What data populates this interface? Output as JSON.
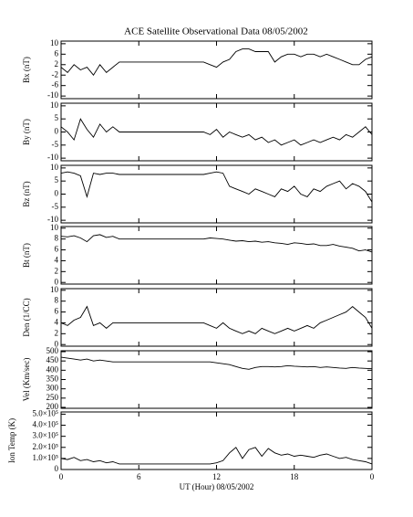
{
  "chart_data": [
    {
      "type": "line",
      "title": "ACE Satellite Observational Data   08/05/2002",
      "ylabel": "Bx (nT)",
      "color": "#000000",
      "x": [
        0,
        0.5,
        1,
        1.5,
        2,
        2.5,
        3,
        3.5,
        4,
        4.5,
        5,
        5.5,
        6,
        6.5,
        7,
        7.5,
        8,
        8.5,
        9,
        9.5,
        10,
        10.5,
        11,
        11.5,
        12,
        12.5,
        13,
        13.5,
        14,
        14.5,
        15,
        15.5,
        16,
        16.5,
        17,
        17.5,
        18,
        18.5,
        19,
        19.5,
        20,
        20.5,
        21,
        21.5,
        22,
        22.5,
        23,
        23.5,
        24
      ],
      "values": [
        1,
        -1,
        2,
        0,
        1,
        -2,
        2,
        -1,
        1,
        3,
        3,
        3,
        3,
        3,
        3,
        3,
        3,
        3,
        3,
        3,
        3,
        3,
        3,
        2,
        1,
        3,
        4,
        7,
        8,
        8,
        7,
        7,
        7,
        3,
        5,
        6,
        6,
        5,
        6,
        6,
        5,
        6,
        5,
        4,
        3,
        2,
        2,
        4,
        5
      ],
      "ylim": [
        -11,
        11
      ],
      "yticks": [
        -10,
        -6,
        -2,
        2,
        6,
        10
      ]
    },
    {
      "type": "line",
      "ylabel": "By (nT)",
      "color": "#000000",
      "x": [
        0,
        0.5,
        1,
        1.5,
        2,
        2.5,
        3,
        3.5,
        4,
        4.5,
        5,
        5.5,
        6,
        6.5,
        7,
        7.5,
        8,
        8.5,
        9,
        9.5,
        10,
        10.5,
        11,
        11.5,
        12,
        12.5,
        13,
        13.5,
        14,
        14.5,
        15,
        15.5,
        16,
        16.5,
        17,
        17.5,
        18,
        18.5,
        19,
        19.5,
        20,
        20.5,
        21,
        21.5,
        22,
        22.5,
        23,
        23.5,
        24
      ],
      "values": [
        2,
        0,
        -3,
        5,
        1,
        -2,
        3,
        0,
        2,
        0,
        0,
        0,
        0,
        0,
        0,
        0,
        0,
        0,
        0,
        0,
        0,
        0,
        0,
        -1,
        1,
        -2,
        0,
        -1,
        -2,
        -1,
        -3,
        -2,
        -4,
        -3,
        -5,
        -4,
        -3,
        -5,
        -4,
        -3,
        -4,
        -3,
        -2,
        -3,
        -1,
        -2,
        0,
        2,
        -1
      ],
      "ylim": [
        -11,
        11
      ],
      "yticks": [
        -10,
        -5,
        0,
        5,
        10
      ]
    },
    {
      "type": "line",
      "ylabel": "Bz (nT)",
      "color": "#000000",
      "x": [
        0,
        0.5,
        1,
        1.5,
        2,
        2.5,
        3,
        3.5,
        4,
        4.5,
        5,
        5.5,
        6,
        6.5,
        7,
        7.5,
        8,
        8.5,
        9,
        9.5,
        10,
        10.5,
        11,
        11.5,
        12,
        12.5,
        13,
        13.5,
        14,
        14.5,
        15,
        15.5,
        16,
        16.5,
        17,
        17.5,
        18,
        18.5,
        19,
        19.5,
        20,
        20.5,
        21,
        21.5,
        22,
        22.5,
        23,
        23.5,
        24
      ],
      "values": [
        8,
        8.5,
        8,
        7,
        -1,
        8,
        7.5,
        8,
        8,
        7.5,
        7.5,
        7.5,
        7.5,
        7.5,
        7.5,
        7.5,
        7.5,
        7.5,
        7.5,
        7.5,
        7.5,
        7.5,
        7.5,
        8,
        8.5,
        8,
        3,
        2,
        1,
        0,
        2,
        1,
        0,
        -1,
        2,
        1,
        3,
        0,
        -1,
        2,
        1,
        3,
        4,
        5,
        2,
        4,
        3,
        1,
        -3
      ],
      "ylim": [
        -11,
        11
      ],
      "yticks": [
        -10,
        -5,
        0,
        5,
        10
      ]
    },
    {
      "type": "line",
      "ylabel": "Bt (nT)",
      "color": "#000000",
      "x": [
        0,
        0.5,
        1,
        1.5,
        2,
        2.5,
        3,
        3.5,
        4,
        4.5,
        5,
        5.5,
        6,
        6.5,
        7,
        7.5,
        8,
        8.5,
        9,
        9.5,
        10,
        10.5,
        11,
        11.5,
        12,
        12.5,
        13,
        13.5,
        14,
        14.5,
        15,
        15.5,
        16,
        16.5,
        17,
        17.5,
        18,
        18.5,
        19,
        19.5,
        20,
        20.5,
        21,
        21.5,
        22,
        22.5,
        23,
        23.5,
        24
      ],
      "values": [
        8.5,
        8.4,
        8.6,
        8.2,
        7.5,
        8.6,
        8.8,
        8.3,
        8.5,
        8,
        8,
        8,
        8,
        8,
        8,
        8,
        8,
        8,
        8,
        8,
        8,
        8,
        8,
        8.2,
        8.1,
        8,
        7.8,
        7.6,
        7.7,
        7.5,
        7.6,
        7.4,
        7.5,
        7.3,
        7.2,
        7,
        7.3,
        7.2,
        7,
        7.1,
        6.8,
        6.8,
        7,
        6.7,
        6.5,
        6.3,
        5.8,
        6,
        5.6
      ],
      "ylim": [
        -0.3,
        10.3
      ],
      "yticks": [
        0,
        2,
        4,
        6,
        8,
        10
      ]
    },
    {
      "type": "line",
      "ylabel": "Den (1/CC)",
      "color": "#000000",
      "x": [
        0,
        0.5,
        1,
        1.5,
        2,
        2.5,
        3,
        3.5,
        4,
        4.5,
        5,
        5.5,
        6,
        6.5,
        7,
        7.5,
        8,
        8.5,
        9,
        9.5,
        10,
        10.5,
        11,
        11.5,
        12,
        12.5,
        13,
        13.5,
        14,
        14.5,
        15,
        15.5,
        16,
        16.5,
        17,
        17.5,
        18,
        18.5,
        19,
        19.5,
        20,
        20.5,
        21,
        21.5,
        22,
        22.5,
        23,
        23.5,
        24
      ],
      "values": [
        4,
        3.5,
        4.5,
        5,
        7,
        3.5,
        4,
        3,
        4,
        4,
        4,
        4,
        4,
        4,
        4,
        4,
        4,
        4,
        4,
        4,
        4,
        4,
        4,
        3.5,
        3,
        4,
        3,
        2.5,
        2,
        2.5,
        2,
        3,
        2.5,
        2,
        2.5,
        3,
        2.5,
        3,
        3.5,
        3,
        4,
        4.5,
        5,
        5.5,
        6,
        7,
        6,
        5,
        3
      ],
      "ylim": [
        -0.3,
        10.3
      ],
      "yticks": [
        0,
        2,
        4,
        6,
        8,
        10
      ]
    },
    {
      "type": "line",
      "ylabel": "Vel (Km/sec)",
      "color": "#000000",
      "x": [
        0,
        0.5,
        1,
        1.5,
        2,
        2.5,
        3,
        3.5,
        4,
        4.5,
        5,
        5.5,
        6,
        6.5,
        7,
        7.5,
        8,
        8.5,
        9,
        9.5,
        10,
        10.5,
        11,
        11.5,
        12,
        12.5,
        13,
        13.5,
        14,
        14.5,
        15,
        15.5,
        16,
        16.5,
        17,
        17.5,
        18,
        18.5,
        19,
        19.5,
        20,
        20.5,
        21,
        21.5,
        22,
        22.5,
        23,
        23.5,
        24
      ],
      "values": [
        470,
        465,
        460,
        455,
        460,
        450,
        455,
        450,
        445,
        445,
        445,
        445,
        445,
        445,
        445,
        445,
        445,
        445,
        445,
        445,
        445,
        445,
        445,
        445,
        440,
        435,
        430,
        420,
        410,
        405,
        415,
        420,
        420,
        418,
        420,
        425,
        422,
        420,
        418,
        420,
        415,
        418,
        415,
        412,
        410,
        415,
        412,
        410,
        408
      ],
      "ylim": [
        195,
        505
      ],
      "yticks": [
        200,
        250,
        300,
        350,
        400,
        450,
        500
      ]
    },
    {
      "type": "line",
      "ylabel": "Ion Temp (K)",
      "xlabel": "UT (Hour)  08/05/2002",
      "color": "#000000",
      "x": [
        0,
        0.5,
        1,
        1.5,
        2,
        2.5,
        3,
        3.5,
        4,
        4.5,
        5,
        5.5,
        6,
        6.5,
        7,
        7.5,
        8,
        8.5,
        9,
        9.5,
        10,
        10.5,
        11,
        11.5,
        12,
        12.5,
        13,
        13.5,
        14,
        14.5,
        15,
        15.5,
        16,
        16.5,
        17,
        17.5,
        18,
        18.5,
        19,
        19.5,
        20,
        20.5,
        21,
        21.5,
        22,
        22.5,
        23,
        23.5,
        24
      ],
      "values": [
        100000,
        90000,
        110000,
        80000,
        90000,
        70000,
        80000,
        60000,
        70000,
        50000,
        50000,
        50000,
        50000,
        50000,
        50000,
        50000,
        50000,
        50000,
        50000,
        50000,
        50000,
        50000,
        50000,
        50000,
        60000,
        80000,
        150000,
        200000,
        100000,
        180000,
        200000,
        120000,
        190000,
        150000,
        130000,
        140000,
        120000,
        130000,
        120000,
        110000,
        130000,
        140000,
        120000,
        100000,
        110000,
        90000,
        80000,
        70000,
        50000
      ],
      "ylim": [
        0,
        520000
      ],
      "yticks": [
        0,
        {
          "value": 100000,
          "label": "1.0×10⁵"
        },
        {
          "value": 200000,
          "label": "2.0×10⁵"
        },
        {
          "value": 300000,
          "label": "3.0×10⁵"
        },
        {
          "value": 400000,
          "label": "4.0×10⁵"
        },
        {
          "value": 500000,
          "label": "5.0×10⁵"
        }
      ],
      "xlim": [
        0,
        24
      ],
      "xticks": [
        0,
        6,
        12,
        18,
        {
          "value": 24,
          "label": "0"
        }
      ]
    }
  ]
}
